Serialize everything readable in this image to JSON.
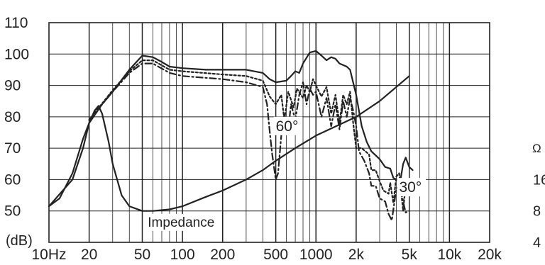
{
  "chart_data": {
    "type": "line",
    "title": "",
    "xlabel": "",
    "ylabel": "(dB)",
    "x_scale": "log",
    "xlim": [
      10,
      20000
    ],
    "ylim": [
      40,
      110
    ],
    "grid": true,
    "colors": {
      "line": "#222222",
      "grid": "#222222",
      "background": "#ffffff"
    },
    "x_ticks": [
      {
        "value": 10,
        "label": "10Hz"
      },
      {
        "value": 20,
        "label": "20"
      },
      {
        "value": 50,
        "label": "50"
      },
      {
        "value": 100,
        "label": "100"
      },
      {
        "value": 200,
        "label": "200"
      },
      {
        "value": 500,
        "label": "500"
      },
      {
        "value": 1000,
        "label": "1000"
      },
      {
        "value": 2000,
        "label": "2k"
      },
      {
        "value": 5000,
        "label": "5k"
      },
      {
        "value": 10000,
        "label": "10k"
      },
      {
        "value": 20000,
        "label": "20k"
      }
    ],
    "y_ticks": [
      {
        "value": 110,
        "label": "110"
      },
      {
        "value": 100,
        "label": "100"
      },
      {
        "value": 90,
        "label": "90"
      },
      {
        "value": 80,
        "label": "80"
      },
      {
        "value": 70,
        "label": "70"
      },
      {
        "value": 60,
        "label": "60"
      },
      {
        "value": 50,
        "label": "50"
      }
    ],
    "y2_unit": "Ω",
    "y2_ticks": [
      {
        "value": 16,
        "label": "16",
        "at_db": 60
      },
      {
        "value": 8,
        "label": "8",
        "at_db": 50
      },
      {
        "value": 4,
        "label": "4",
        "at_db": 40
      }
    ],
    "annotations": [
      {
        "text": "60°",
        "x": 500,
        "y": 75.5
      },
      {
        "text": "30°",
        "x": 4200,
        "y": 56
      },
      {
        "text": "Impedance",
        "x": 55,
        "y": 45
      }
    ],
    "series": [
      {
        "name": "",
        "style": "solid",
        "values": [
          [
            10,
            51.5
          ],
          [
            12,
            54
          ],
          [
            15,
            62
          ],
          [
            18,
            73
          ],
          [
            20,
            78
          ],
          [
            25,
            84
          ],
          [
            30,
            88
          ],
          [
            40,
            95
          ],
          [
            50,
            99.5
          ],
          [
            60,
            99
          ],
          [
            70,
            97.5
          ],
          [
            80,
            96
          ],
          [
            100,
            95.5
          ],
          [
            150,
            95
          ],
          [
            200,
            95
          ],
          [
            300,
            95
          ],
          [
            400,
            94
          ],
          [
            450,
            92
          ],
          [
            500,
            91
          ],
          [
            600,
            91.5
          ],
          [
            650,
            93
          ],
          [
            700,
            94.5
          ],
          [
            750,
            94
          ],
          [
            800,
            97
          ],
          [
            900,
            100.5
          ],
          [
            1000,
            101
          ],
          [
            1100,
            99.5
          ],
          [
            1200,
            98
          ],
          [
            1300,
            99
          ],
          [
            1400,
            98.5
          ],
          [
            1500,
            97
          ],
          [
            1700,
            96
          ],
          [
            1800,
            95
          ],
          [
            2000,
            87
          ],
          [
            2200,
            77
          ],
          [
            2400,
            72
          ],
          [
            2600,
            69
          ],
          [
            3000,
            66.5
          ],
          [
            3300,
            64
          ],
          [
            3600,
            63.5
          ],
          [
            3800,
            60.5
          ],
          [
            4000,
            60
          ],
          [
            4300,
            60
          ],
          [
            4500,
            65
          ],
          [
            4700,
            67
          ],
          [
            5000,
            64
          ],
          [
            5300,
            63
          ]
        ]
      },
      {
        "name": "30°",
        "style": "dotted",
        "values": [
          [
            20,
            79
          ],
          [
            30,
            88.5
          ],
          [
            40,
            94.5
          ],
          [
            50,
            98
          ],
          [
            60,
            98
          ],
          [
            80,
            95
          ],
          [
            100,
            94.5
          ],
          [
            200,
            93.5
          ],
          [
            300,
            93
          ],
          [
            400,
            91.5
          ],
          [
            450,
            86.5
          ],
          [
            500,
            84
          ],
          [
            550,
            87
          ],
          [
            580,
            79
          ],
          [
            620,
            88
          ],
          [
            680,
            83
          ],
          [
            720,
            89
          ],
          [
            800,
            86
          ],
          [
            850,
            90
          ],
          [
            900,
            88
          ],
          [
            950,
            92
          ],
          [
            1000,
            90
          ],
          [
            1100,
            86.5
          ],
          [
            1200,
            89.5
          ],
          [
            1300,
            81
          ],
          [
            1400,
            87
          ],
          [
            1500,
            78
          ],
          [
            1600,
            87
          ],
          [
            1700,
            84
          ],
          [
            1800,
            88
          ],
          [
            1900,
            78
          ],
          [
            2000,
            70
          ],
          [
            2200,
            70
          ],
          [
            2500,
            68
          ],
          [
            2600,
            63
          ],
          [
            2800,
            63
          ],
          [
            3000,
            59.5
          ],
          [
            3200,
            56.5
          ],
          [
            3500,
            55.5
          ],
          [
            3600,
            59
          ],
          [
            3800,
            52.5
          ],
          [
            4000,
            61
          ],
          [
            4200,
            62
          ],
          [
            4500,
            50
          ],
          [
            4700,
            58.5
          ],
          [
            5000,
            55
          ]
        ]
      },
      {
        "name": "60°",
        "style": "dash-dot",
        "values": [
          [
            20,
            79
          ],
          [
            30,
            88
          ],
          [
            40,
            94
          ],
          [
            50,
            97
          ],
          [
            60,
            97
          ],
          [
            80,
            94
          ],
          [
            100,
            93
          ],
          [
            200,
            92
          ],
          [
            300,
            91
          ],
          [
            400,
            89.5
          ],
          [
            430,
            84
          ],
          [
            450,
            75.5
          ],
          [
            470,
            68
          ],
          [
            500,
            60
          ],
          [
            520,
            62
          ],
          [
            550,
            74
          ],
          [
            580,
            81
          ],
          [
            620,
            76
          ],
          [
            650,
            84
          ],
          [
            700,
            79
          ],
          [
            750,
            87
          ],
          [
            800,
            91
          ],
          [
            850,
            84
          ],
          [
            900,
            89
          ],
          [
            950,
            87
          ],
          [
            1000,
            88
          ],
          [
            1100,
            80
          ],
          [
            1200,
            86
          ],
          [
            1300,
            77
          ],
          [
            1400,
            84
          ],
          [
            1500,
            76
          ],
          [
            1600,
            85
          ],
          [
            1700,
            80
          ],
          [
            1800,
            86
          ],
          [
            1900,
            82
          ],
          [
            2000,
            77
          ],
          [
            2100,
            69
          ],
          [
            2300,
            66
          ],
          [
            2500,
            62
          ],
          [
            2600,
            58
          ],
          [
            2800,
            58
          ],
          [
            3000,
            54
          ],
          [
            3300,
            53
          ],
          [
            3500,
            49
          ],
          [
            3700,
            47
          ],
          [
            4000,
            57
          ],
          [
            4300,
            59
          ],
          [
            4500,
            53
          ],
          [
            4700,
            49.5
          ],
          [
            5000,
            50
          ]
        ]
      },
      {
        "name": "Impedance",
        "style": "solid",
        "values": [
          [
            10,
            51.5
          ],
          [
            15,
            60
          ],
          [
            18,
            70
          ],
          [
            20,
            78
          ],
          [
            22,
            82
          ],
          [
            23.5,
            83.5
          ],
          [
            25,
            81
          ],
          [
            28,
            72
          ],
          [
            30,
            65
          ],
          [
            35,
            55
          ],
          [
            40,
            51.5
          ],
          [
            50,
            50
          ],
          [
            60,
            50
          ],
          [
            80,
            50.5
          ],
          [
            100,
            51.5
          ],
          [
            150,
            54.5
          ],
          [
            200,
            56.5
          ],
          [
            300,
            60
          ],
          [
            400,
            63
          ],
          [
            500,
            66
          ],
          [
            700,
            70
          ],
          [
            1000,
            74
          ],
          [
            1500,
            77.5
          ],
          [
            2000,
            80
          ],
          [
            3000,
            85
          ],
          [
            5000,
            93
          ]
        ]
      }
    ]
  }
}
